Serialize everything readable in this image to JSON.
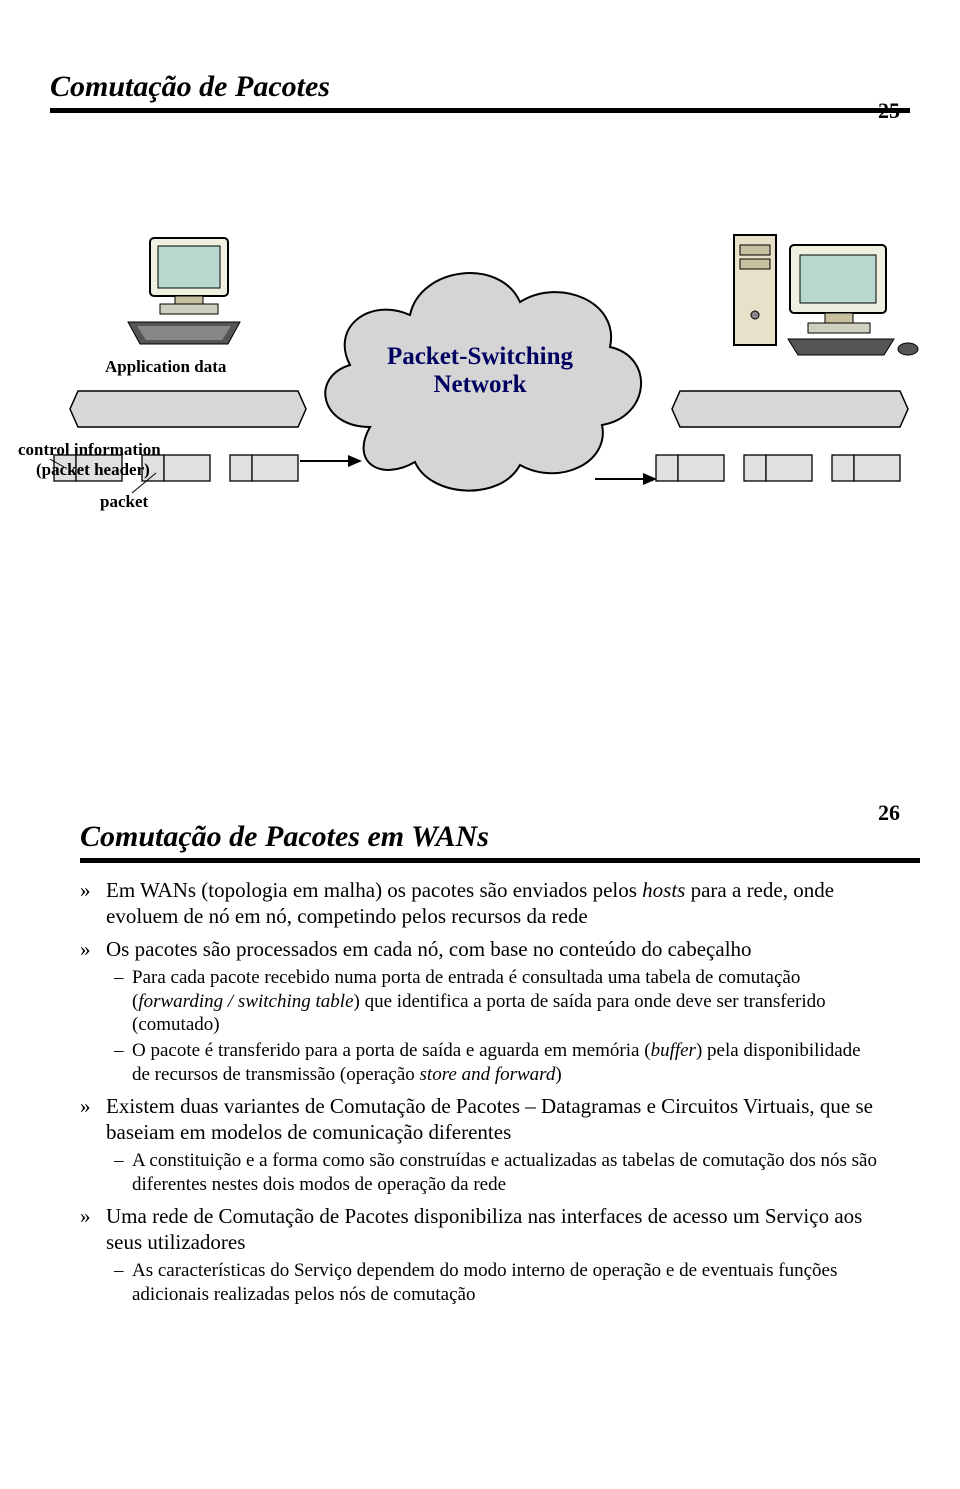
{
  "page1": {
    "number": "25",
    "title": "Comutação de Pacotes",
    "diagram": {
      "labels": {
        "application_data": "Application data",
        "control_info_1": "control information",
        "control_info_2": "(packet header)",
        "packet": "packet",
        "cloud_line1": "Packet-Switching",
        "cloud_line2": "Network"
      },
      "colors": {
        "cloud_fill": "#d5d5d5",
        "cloud_stroke": "#000000",
        "cloud_text": "#000060",
        "packet_fill": "#e0e0e0",
        "packet_stroke": "#000000",
        "data_fill": "#d8d8d8",
        "monitor_fill": "#f0f0e0",
        "monitor_screen": "#b8d8d0",
        "tower_fill": "#e8e0c8",
        "arrow": "#000000"
      }
    }
  },
  "page2": {
    "number": "26",
    "title": "Comutação de Pacotes em WANs",
    "bullets": [
      {
        "level": 1,
        "parts": [
          {
            "t": "Em WANs (topologia em malha) os pacotes são enviados pelos "
          },
          {
            "t": "hosts",
            "it": true
          },
          {
            "t": " para a rede, onde evoluem de nó em nó, competindo pelos recursos da rede"
          }
        ]
      },
      {
        "level": 1,
        "parts": [
          {
            "t": "Os pacotes são processados em cada nó, com base no conteúdo do cabeçalho"
          }
        ]
      },
      {
        "level": 2,
        "parts": [
          {
            "t": "Para cada pacote recebido numa porta de entrada é consultada uma tabela de comutação ("
          },
          {
            "t": "forwarding / switching table",
            "it": true
          },
          {
            "t": ") que identifica a porta de saída para onde deve ser transferido (comutado)"
          }
        ]
      },
      {
        "level": 2,
        "parts": [
          {
            "t": "O pacote é transferido para a porta de saída e aguarda em memória ("
          },
          {
            "t": "buffer",
            "it": true
          },
          {
            "t": ") pela disponibilidade de recursos de transmissão (operação "
          },
          {
            "t": "store and forward",
            "it": true
          },
          {
            "t": ")"
          }
        ]
      },
      {
        "level": 1,
        "parts": [
          {
            "t": "Existem duas variantes de Comutação de Pacotes – Datagramas e Circuitos Virtuais, que se baseiam em modelos de comunicação diferentes"
          }
        ]
      },
      {
        "level": 2,
        "parts": [
          {
            "t": "A constituição e a forma como são construídas e actualizadas as tabelas de comutação dos nós são diferentes nestes dois modos de operação da rede"
          }
        ]
      },
      {
        "level": 1,
        "parts": [
          {
            "t": "Uma rede de Comutação de Pacotes disponibiliza nas interfaces de acesso um Serviço aos seus utilizadores"
          }
        ]
      },
      {
        "level": 2,
        "parts": [
          {
            "t": "As características do Serviço dependem do modo interno de operação e de eventuais funções adicionais realizadas pelos nós de comutação"
          }
        ]
      }
    ]
  }
}
